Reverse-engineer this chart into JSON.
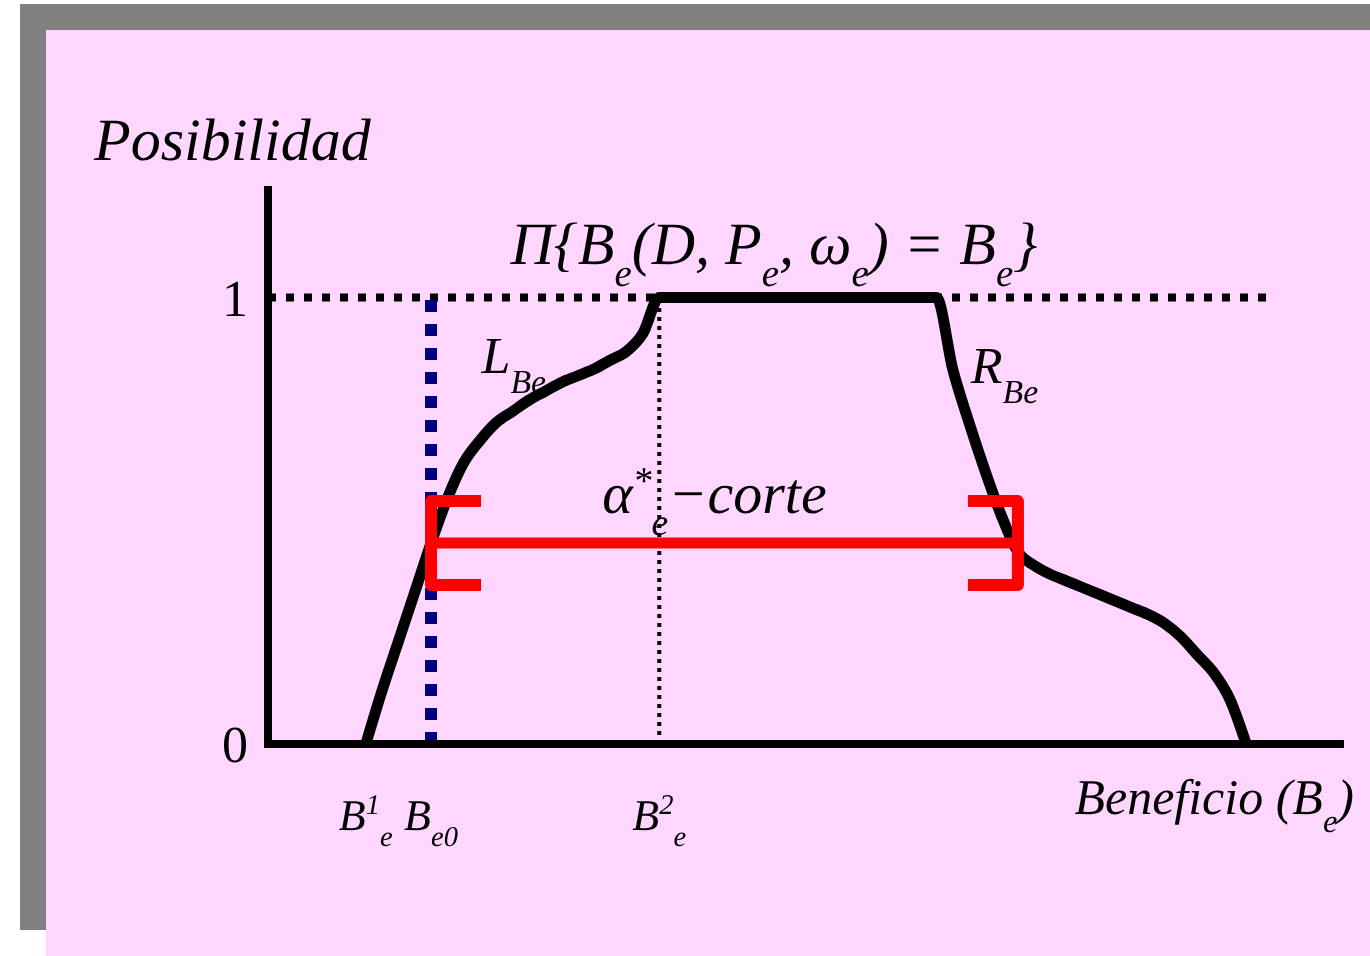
{
  "chart_data": {
    "type": "line",
    "ylabel": "Posibilidad",
    "xlabel": "Beneficio (B$_{e}$)",
    "categories": [
      null,
      null,
      null,
      null,
      null,
      null,
      "B$^{1}$$_{e}$",
      null,
      null,
      null,
      "B$_{e0}$",
      null,
      null,
      null,
      null,
      null,
      null,
      null,
      null,
      null,
      null,
      null,
      null,
      null,
      "B$^{2}$$_{e}$",
      null,
      null,
      null,
      null,
      null,
      null,
      null,
      null,
      null,
      null,
      null,
      null,
      null,
      null,
      null,
      null,
      null,
      null,
      null,
      null,
      null,
      null,
      null,
      null,
      null,
      null,
      null,
      null,
      null,
      null,
      null,
      null,
      null,
      null,
      null,
      null,
      null,
      null,
      null,
      null,
      null,
      null
    ],
    "series": [
      {
        "name": "Π{B$_{e}$(D, P$_{e}$, ω$_{e}$) = B$_{e}$}",
        "color": "#000000",
        "values": [
          null,
          null,
          null,
          null,
          null,
          null,
          0,
          0.12,
          0.23,
          0.34,
          0.45,
          0.55,
          0.63,
          0.68,
          0.72,
          0.745,
          0.77,
          0.79,
          0.81,
          0.825,
          0.84,
          0.86,
          0.88,
          0.92,
          1,
          1,
          1,
          1,
          1,
          1,
          1,
          1,
          1,
          1,
          1,
          1,
          1,
          1,
          1,
          1,
          1,
          1,
          0.84,
          0.72,
          0.61,
          0.51,
          0.43,
          0.4,
          0.38,
          0.365,
          0.35,
          0.335,
          0.32,
          0.305,
          0.29,
          0.27,
          0.24,
          0.2,
          0.16,
          0.1,
          0,
          null,
          null,
          null,
          null,
          null,
          null
        ]
      },
      {
        "color": "#ff0000",
        "values": [
          null,
          null,
          null,
          null,
          null,
          null,
          null,
          null,
          null,
          null,
          0.45,
          0.45,
          0.45,
          0.45,
          0.45,
          0.45,
          0.45,
          0.45,
          0.45,
          0.45,
          0.45,
          0.45,
          0.45,
          0.45,
          0.45,
          0.45,
          0.45,
          0.45,
          0.45,
          0.45,
          0.45,
          0.45,
          0.45,
          0.45,
          0.45,
          0.45,
          0.45,
          0.45,
          0.45,
          0.45,
          0.45,
          0.45,
          0.45,
          0.45,
          0.45,
          0.45,
          0.45,
          null,
          null,
          null,
          null,
          null,
          null,
          null,
          null,
          null,
          null,
          null,
          null,
          null,
          null,
          null,
          null,
          null,
          null,
          null,
          null
        ]
      }
    ],
    "ylim": [
      0,
      1.25
    ],
    "yticks": [
      0,
      1
    ],
    "ref_lines": [
      {
        "axis": "y",
        "value": 1,
        "color": "#000000",
        "line_style": "dotted"
      },
      {
        "axis": "x",
        "value": "B$_{e0}$",
        "color": "#000080",
        "line_style": "dashed"
      },
      {
        "axis": "x",
        "value": "B$^{2}$$_{e}$",
        "color": "#000000",
        "line_style": "dotted"
      }
    ],
    "annotations": [
      "L$_{Be}$",
      "R$_{Be}$",
      "α$^{*}$$_{e}$−corte"
    ]
  }
}
